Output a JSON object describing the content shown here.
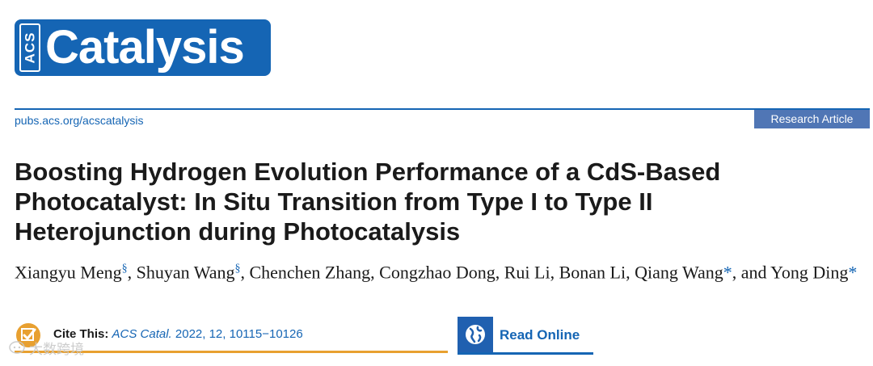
{
  "logo": {
    "acs": "ACS",
    "name": "Catalysis"
  },
  "header": {
    "journal_url": "pubs.acs.org/acscatalysis",
    "article_type": "Research Article"
  },
  "title": "Boosting Hydrogen Evolution Performance of a CdS-Based Photocatalyst: In Situ Transition from Type I to Type II Heterojunction during Photocatalysis",
  "authors": [
    {
      "name": "Xiangyu Meng",
      "mark": "§"
    },
    {
      "name": "Shuyan Wang",
      "mark": "§"
    },
    {
      "name": "Chenchen Zhang",
      "mark": ""
    },
    {
      "name": "Congzhao Dong",
      "mark": ""
    },
    {
      "name": "Rui Li",
      "mark": ""
    },
    {
      "name": "Bonan Li",
      "mark": ""
    },
    {
      "name": "Qiang Wang",
      "mark": "*"
    },
    {
      "name": "Yong Ding",
      "mark": "*"
    }
  ],
  "authors_conjunction": "and",
  "cite": {
    "label": "Cite This:",
    "journal": "ACS Catal.",
    "details": "2022, 12, 10115−10126"
  },
  "read_online": {
    "label": "Read Online"
  },
  "watermark": {
    "text": "大数跨境"
  },
  "colors": {
    "brand_blue": "#1565b4",
    "cite_orange": "#e8a030",
    "badge_blue": "#5076b5"
  }
}
